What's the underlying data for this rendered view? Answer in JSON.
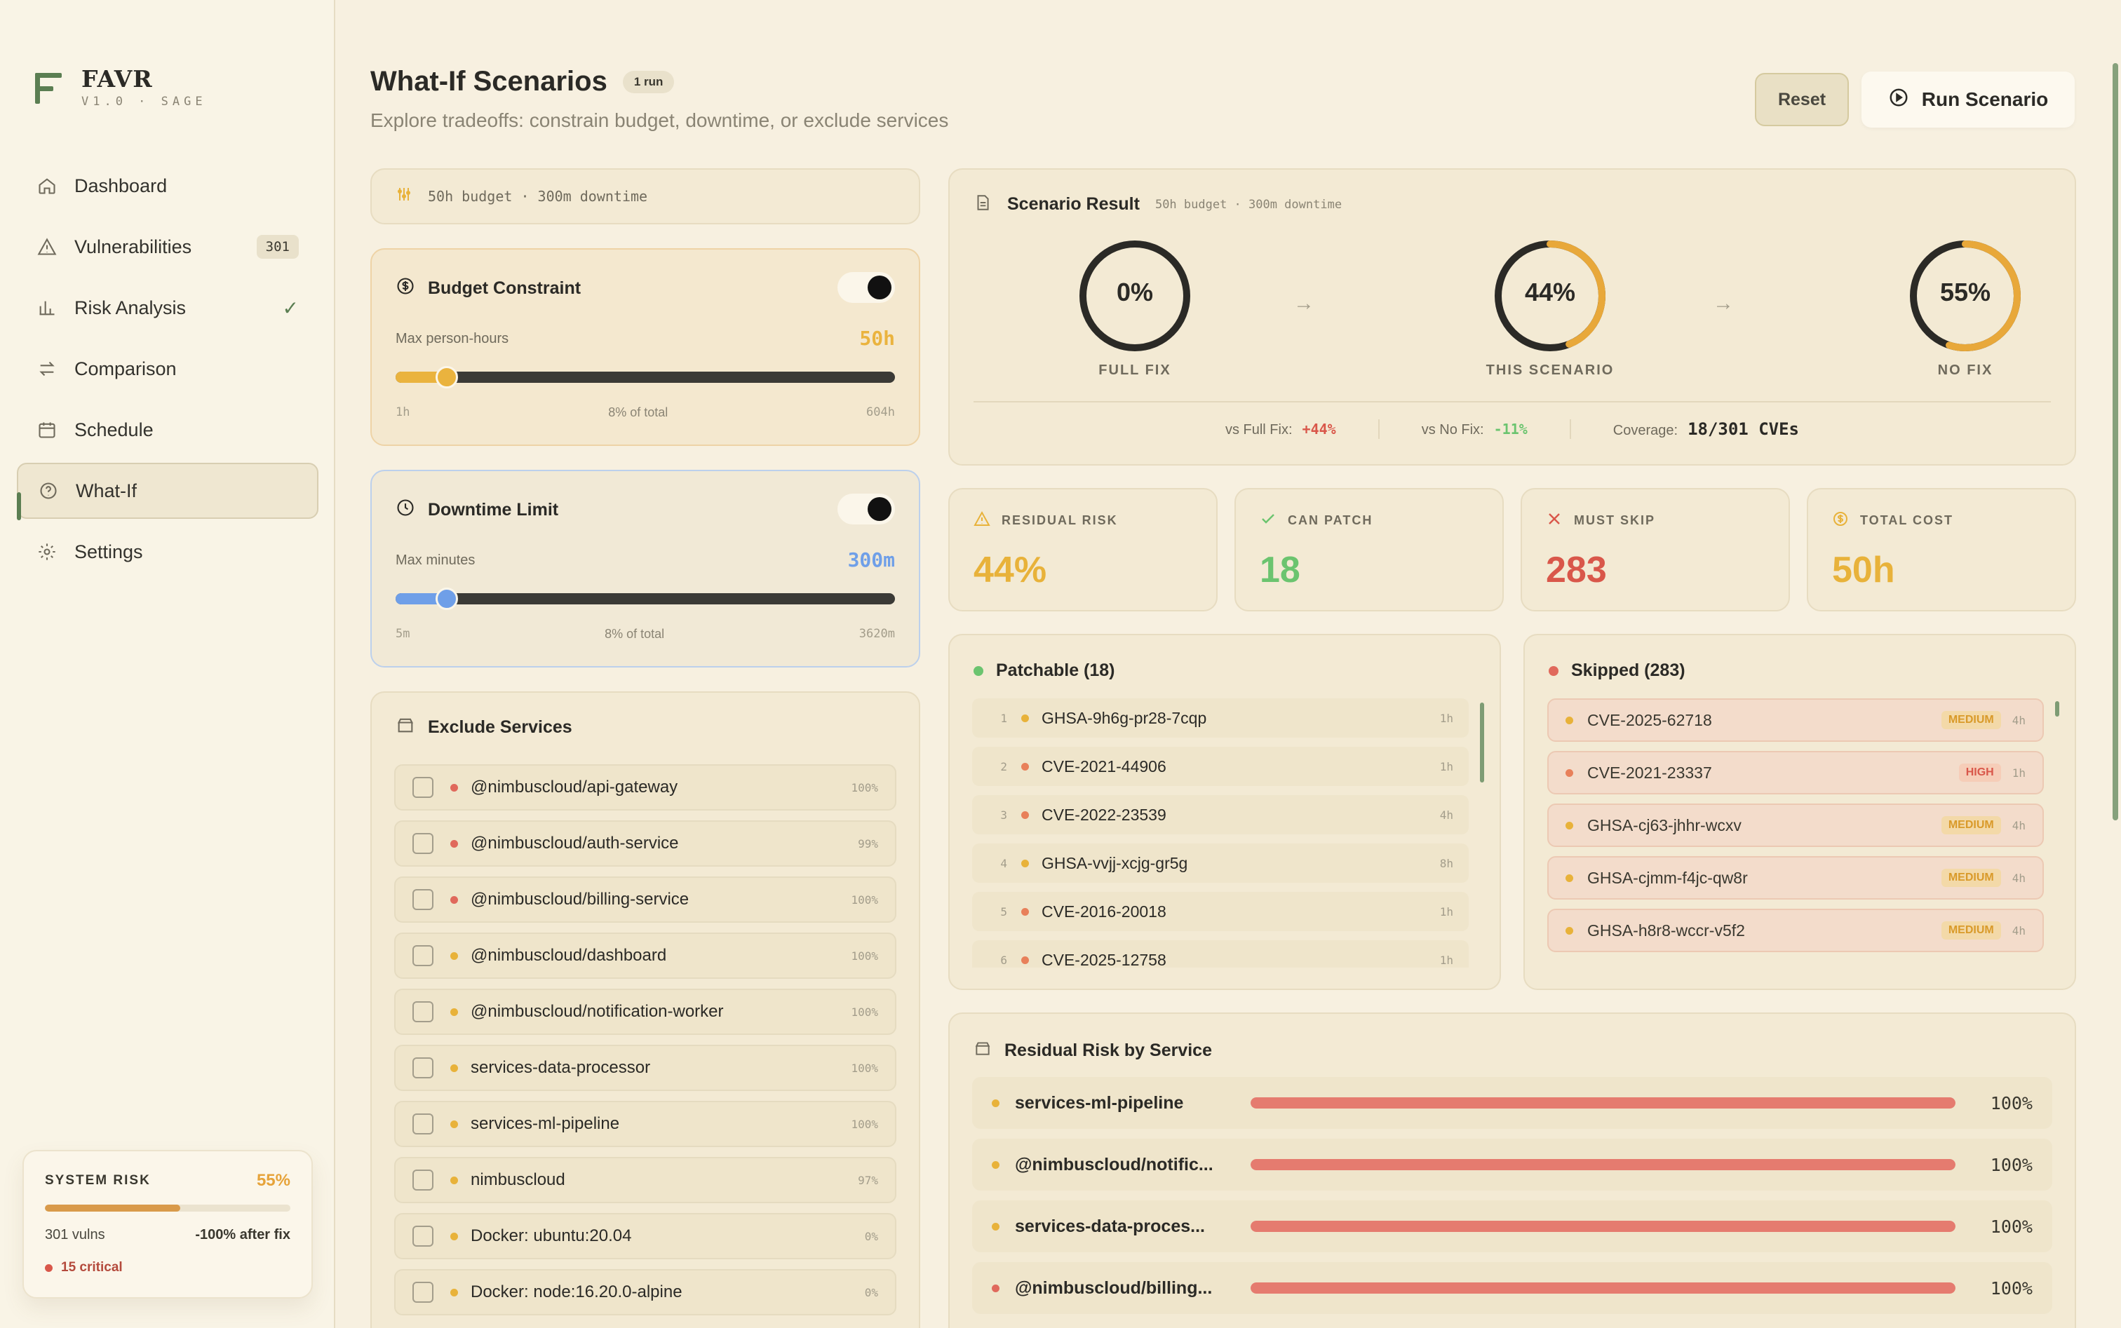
{
  "brand": {
    "name": "FAVR",
    "version": "V1.0 · SAGE"
  },
  "nav": [
    {
      "label": "Dashboard",
      "icon": "home-icon"
    },
    {
      "label": "Vulnerabilities",
      "icon": "warning-icon",
      "badge": "301"
    },
    {
      "label": "Risk Analysis",
      "icon": "bar-chart-icon",
      "check": "✓"
    },
    {
      "label": "Comparison",
      "icon": "arrows-swap-icon"
    },
    {
      "label": "Schedule",
      "icon": "calendar-icon"
    },
    {
      "label": "What-If",
      "icon": "help-circle-icon",
      "active": true
    },
    {
      "label": "Settings",
      "icon": "gear-icon"
    }
  ],
  "system_risk": {
    "label": "SYSTEM RISK",
    "percent": "55%",
    "fill": 0.55,
    "vulns": "301 vulns",
    "after_fix": "-100% after fix",
    "critical": "15 critical"
  },
  "header": {
    "title": "What-If Scenarios",
    "runs": "1 run",
    "subtitle": "Explore tradeoffs: constrain budget, downtime, or exclude services",
    "reset": "Reset",
    "run": "Run Scenario"
  },
  "summary": {
    "text": "50h budget · 300m downtime"
  },
  "budget": {
    "title": "Budget Constraint",
    "label": "Max person-hours",
    "value": "50h",
    "min": "1h",
    "mid": "8% of total",
    "max": "604h",
    "fraction": 0.08
  },
  "downtime": {
    "title": "Downtime Limit",
    "label": "Max minutes",
    "value": "300m",
    "min": "5m",
    "mid": "8% of total",
    "max": "3620m",
    "fraction": 0.08
  },
  "exclude": {
    "title": "Exclude Services",
    "items": [
      {
        "name": "@nimbuscloud/api-gateway",
        "pct": "100%",
        "color": "#e0695c"
      },
      {
        "name": "@nimbuscloud/auth-service",
        "pct": "99%",
        "color": "#e0695c"
      },
      {
        "name": "@nimbuscloud/billing-service",
        "pct": "100%",
        "color": "#e0695c"
      },
      {
        "name": "@nimbuscloud/dashboard",
        "pct": "100%",
        "color": "#e8b23a"
      },
      {
        "name": "@nimbuscloud/notification-worker",
        "pct": "100%",
        "color": "#e8b23a"
      },
      {
        "name": "services-data-processor",
        "pct": "100%",
        "color": "#e8b23a"
      },
      {
        "name": "services-ml-pipeline",
        "pct": "100%",
        "color": "#e8b23a"
      },
      {
        "name": "nimbuscloud",
        "pct": "97%",
        "color": "#e8b23a"
      },
      {
        "name": "Docker: ubuntu:20.04",
        "pct": "0%",
        "color": "#e8b23a"
      },
      {
        "name": "Docker: node:16.20.0-alpine",
        "pct": "0%",
        "color": "#e8b23a"
      }
    ]
  },
  "result": {
    "title": "Scenario Result",
    "subtitle": "50h budget · 300m downtime",
    "gauges": [
      {
        "value": "0%",
        "fraction": 0.0,
        "caption": "FULL FIX"
      },
      {
        "value": "44%",
        "fraction": 0.44,
        "caption": "THIS SCENARIO"
      },
      {
        "value": "55%",
        "fraction": 0.55,
        "caption": "NO FIX"
      }
    ],
    "vs_full_label": "vs Full Fix:",
    "vs_full": "+44%",
    "vs_no_label": "vs No Fix:",
    "vs_no": "-11%",
    "coverage_label": "Coverage:",
    "coverage": "18/301 CVEs"
  },
  "metrics": [
    {
      "label": "RESIDUAL RISK",
      "value": "44%",
      "color": "#e8b23a",
      "icon": "warning-icon"
    },
    {
      "label": "CAN PATCH",
      "value": "18",
      "color": "#6bc46f",
      "icon": "check-icon"
    },
    {
      "label": "MUST SKIP",
      "value": "283",
      "color": "#d9574a",
      "icon": "x-icon"
    },
    {
      "label": "TOTAL COST",
      "value": "50h",
      "color": "#e8b23a",
      "icon": "dollar-icon"
    }
  ],
  "patchable": {
    "title": "Patchable (18)",
    "items": [
      {
        "n": "1",
        "id": "GHSA-9h6g-pr28-7cqp",
        "h": "1h",
        "color": "#e8b23a"
      },
      {
        "n": "2",
        "id": "CVE-2021-44906",
        "h": "1h",
        "color": "#e8805a"
      },
      {
        "n": "3",
        "id": "CVE-2022-23539",
        "h": "4h",
        "color": "#e8805a"
      },
      {
        "n": "4",
        "id": "GHSA-vvjj-xcjg-gr5g",
        "h": "8h",
        "color": "#e8b23a"
      },
      {
        "n": "5",
        "id": "CVE-2016-20018",
        "h": "1h",
        "color": "#e8805a"
      },
      {
        "n": "6",
        "id": "CVE-2025-12758",
        "h": "1h",
        "color": "#e8805a"
      }
    ]
  },
  "skipped": {
    "title": "Skipped (283)",
    "items": [
      {
        "id": "CVE-2025-62718",
        "sev": "MEDIUM",
        "h": "4h"
      },
      {
        "id": "CVE-2021-23337",
        "sev": "HIGH",
        "h": "1h"
      },
      {
        "id": "GHSA-cj63-jhhr-wcxv",
        "sev": "MEDIUM",
        "h": "4h"
      },
      {
        "id": "GHSA-cjmm-f4jc-qw8r",
        "sev": "MEDIUM",
        "h": "4h"
      },
      {
        "id": "GHSA-h8r8-wccr-v5f2",
        "sev": "MEDIUM",
        "h": "4h"
      }
    ]
  },
  "residual_by_service": {
    "title": "Residual Risk by Service",
    "items": [
      {
        "name": "services-ml-pipeline",
        "pct": "100%",
        "fraction": 1.0,
        "color": "#e8b23a"
      },
      {
        "name": "@nimbuscloud/notific...",
        "pct": "100%",
        "fraction": 1.0,
        "color": "#e8b23a"
      },
      {
        "name": "services-data-proces...",
        "pct": "100%",
        "fraction": 1.0,
        "color": "#e8b23a"
      },
      {
        "name": "@nimbuscloud/billing...",
        "pct": "100%",
        "fraction": 1.0,
        "color": "#e0695c"
      }
    ]
  },
  "colors": {
    "accent": "#5b7e52",
    "budget": "#eab33e",
    "downtime": "#6f9fe8",
    "danger": "#d9574a",
    "ok": "#6bc46f"
  }
}
